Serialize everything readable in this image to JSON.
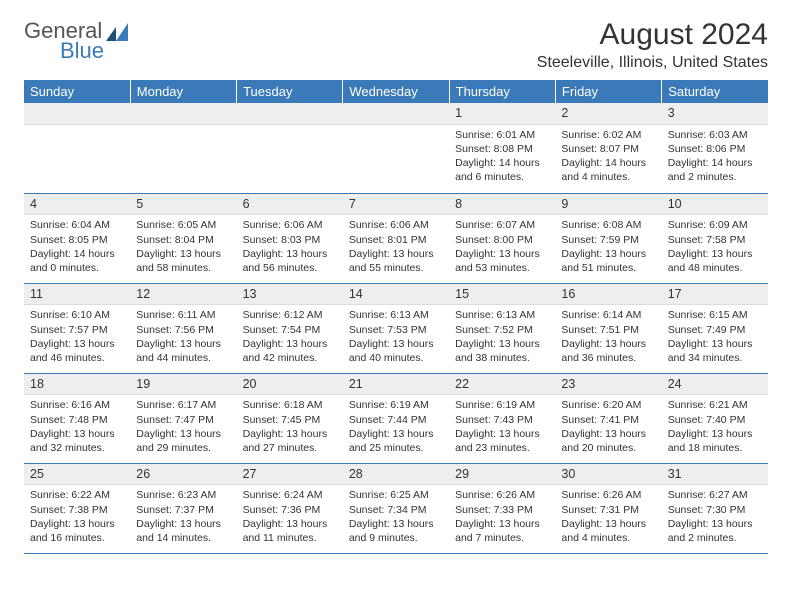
{
  "brand": {
    "part1": "General",
    "part2": "Blue",
    "icon_color": "#3a7ab8"
  },
  "title": "August 2024",
  "location": "Steeleville, Illinois, United States",
  "colors": {
    "header_bg": "#3a7ab8",
    "header_text": "#ffffff",
    "daynum_bg": "#eeeeee",
    "border": "#3a7ab8",
    "text": "#333333"
  },
  "day_headers": [
    "Sunday",
    "Monday",
    "Tuesday",
    "Wednesday",
    "Thursday",
    "Friday",
    "Saturday"
  ],
  "weeks": [
    [
      {
        "n": "",
        "sr": "",
        "ss": "",
        "dl": ""
      },
      {
        "n": "",
        "sr": "",
        "ss": "",
        "dl": ""
      },
      {
        "n": "",
        "sr": "",
        "ss": "",
        "dl": ""
      },
      {
        "n": "",
        "sr": "",
        "ss": "",
        "dl": ""
      },
      {
        "n": "1",
        "sr": "Sunrise: 6:01 AM",
        "ss": "Sunset: 8:08 PM",
        "dl": "Daylight: 14 hours and 6 minutes."
      },
      {
        "n": "2",
        "sr": "Sunrise: 6:02 AM",
        "ss": "Sunset: 8:07 PM",
        "dl": "Daylight: 14 hours and 4 minutes."
      },
      {
        "n": "3",
        "sr": "Sunrise: 6:03 AM",
        "ss": "Sunset: 8:06 PM",
        "dl": "Daylight: 14 hours and 2 minutes."
      }
    ],
    [
      {
        "n": "4",
        "sr": "Sunrise: 6:04 AM",
        "ss": "Sunset: 8:05 PM",
        "dl": "Daylight: 14 hours and 0 minutes."
      },
      {
        "n": "5",
        "sr": "Sunrise: 6:05 AM",
        "ss": "Sunset: 8:04 PM",
        "dl": "Daylight: 13 hours and 58 minutes."
      },
      {
        "n": "6",
        "sr": "Sunrise: 6:06 AM",
        "ss": "Sunset: 8:03 PM",
        "dl": "Daylight: 13 hours and 56 minutes."
      },
      {
        "n": "7",
        "sr": "Sunrise: 6:06 AM",
        "ss": "Sunset: 8:01 PM",
        "dl": "Daylight: 13 hours and 55 minutes."
      },
      {
        "n": "8",
        "sr": "Sunrise: 6:07 AM",
        "ss": "Sunset: 8:00 PM",
        "dl": "Daylight: 13 hours and 53 minutes."
      },
      {
        "n": "9",
        "sr": "Sunrise: 6:08 AM",
        "ss": "Sunset: 7:59 PM",
        "dl": "Daylight: 13 hours and 51 minutes."
      },
      {
        "n": "10",
        "sr": "Sunrise: 6:09 AM",
        "ss": "Sunset: 7:58 PM",
        "dl": "Daylight: 13 hours and 48 minutes."
      }
    ],
    [
      {
        "n": "11",
        "sr": "Sunrise: 6:10 AM",
        "ss": "Sunset: 7:57 PM",
        "dl": "Daylight: 13 hours and 46 minutes."
      },
      {
        "n": "12",
        "sr": "Sunrise: 6:11 AM",
        "ss": "Sunset: 7:56 PM",
        "dl": "Daylight: 13 hours and 44 minutes."
      },
      {
        "n": "13",
        "sr": "Sunrise: 6:12 AM",
        "ss": "Sunset: 7:54 PM",
        "dl": "Daylight: 13 hours and 42 minutes."
      },
      {
        "n": "14",
        "sr": "Sunrise: 6:13 AM",
        "ss": "Sunset: 7:53 PM",
        "dl": "Daylight: 13 hours and 40 minutes."
      },
      {
        "n": "15",
        "sr": "Sunrise: 6:13 AM",
        "ss": "Sunset: 7:52 PM",
        "dl": "Daylight: 13 hours and 38 minutes."
      },
      {
        "n": "16",
        "sr": "Sunrise: 6:14 AM",
        "ss": "Sunset: 7:51 PM",
        "dl": "Daylight: 13 hours and 36 minutes."
      },
      {
        "n": "17",
        "sr": "Sunrise: 6:15 AM",
        "ss": "Sunset: 7:49 PM",
        "dl": "Daylight: 13 hours and 34 minutes."
      }
    ],
    [
      {
        "n": "18",
        "sr": "Sunrise: 6:16 AM",
        "ss": "Sunset: 7:48 PM",
        "dl": "Daylight: 13 hours and 32 minutes."
      },
      {
        "n": "19",
        "sr": "Sunrise: 6:17 AM",
        "ss": "Sunset: 7:47 PM",
        "dl": "Daylight: 13 hours and 29 minutes."
      },
      {
        "n": "20",
        "sr": "Sunrise: 6:18 AM",
        "ss": "Sunset: 7:45 PM",
        "dl": "Daylight: 13 hours and 27 minutes."
      },
      {
        "n": "21",
        "sr": "Sunrise: 6:19 AM",
        "ss": "Sunset: 7:44 PM",
        "dl": "Daylight: 13 hours and 25 minutes."
      },
      {
        "n": "22",
        "sr": "Sunrise: 6:19 AM",
        "ss": "Sunset: 7:43 PM",
        "dl": "Daylight: 13 hours and 23 minutes."
      },
      {
        "n": "23",
        "sr": "Sunrise: 6:20 AM",
        "ss": "Sunset: 7:41 PM",
        "dl": "Daylight: 13 hours and 20 minutes."
      },
      {
        "n": "24",
        "sr": "Sunrise: 6:21 AM",
        "ss": "Sunset: 7:40 PM",
        "dl": "Daylight: 13 hours and 18 minutes."
      }
    ],
    [
      {
        "n": "25",
        "sr": "Sunrise: 6:22 AM",
        "ss": "Sunset: 7:38 PM",
        "dl": "Daylight: 13 hours and 16 minutes."
      },
      {
        "n": "26",
        "sr": "Sunrise: 6:23 AM",
        "ss": "Sunset: 7:37 PM",
        "dl": "Daylight: 13 hours and 14 minutes."
      },
      {
        "n": "27",
        "sr": "Sunrise: 6:24 AM",
        "ss": "Sunset: 7:36 PM",
        "dl": "Daylight: 13 hours and 11 minutes."
      },
      {
        "n": "28",
        "sr": "Sunrise: 6:25 AM",
        "ss": "Sunset: 7:34 PM",
        "dl": "Daylight: 13 hours and 9 minutes."
      },
      {
        "n": "29",
        "sr": "Sunrise: 6:26 AM",
        "ss": "Sunset: 7:33 PM",
        "dl": "Daylight: 13 hours and 7 minutes."
      },
      {
        "n": "30",
        "sr": "Sunrise: 6:26 AM",
        "ss": "Sunset: 7:31 PM",
        "dl": "Daylight: 13 hours and 4 minutes."
      },
      {
        "n": "31",
        "sr": "Sunrise: 6:27 AM",
        "ss": "Sunset: 7:30 PM",
        "dl": "Daylight: 13 hours and 2 minutes."
      }
    ]
  ]
}
